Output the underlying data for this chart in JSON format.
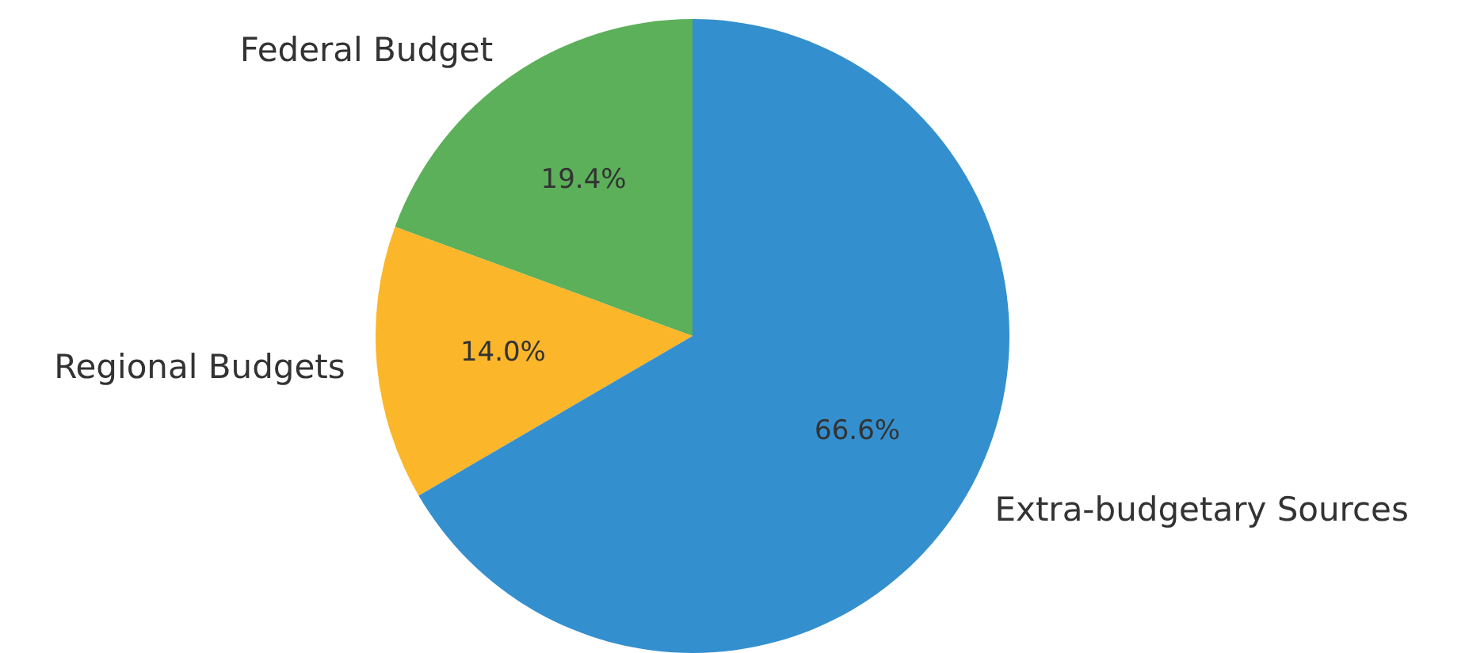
{
  "chart_data": {
    "type": "pie",
    "categories": [
      "Federal Budget",
      "Regional Budgets",
      "Extra-budgetary Sources"
    ],
    "values": [
      19.4,
      14.0,
      66.6
    ],
    "colors": [
      "#5cb05a",
      "#fbb62a",
      "#348fce"
    ],
    "value_labels": [
      "19.4%",
      "14.0%",
      "66.6%"
    ]
  }
}
